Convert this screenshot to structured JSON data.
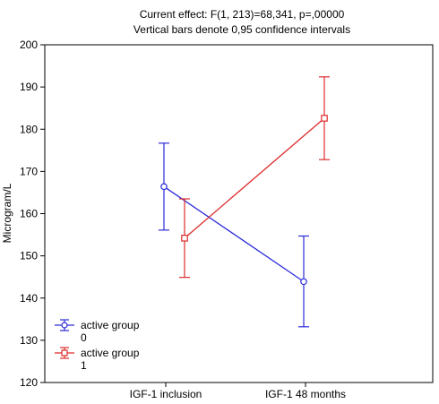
{
  "chart_data": {
    "type": "line",
    "title": "Current effect: F(1, 213)=68,341, p=,00000",
    "subtitle": "Vertical bars denote 0,95 confidence intervals",
    "ylabel": "Microgram/L",
    "xlabel": "",
    "categories": [
      "IGF-1 inclusion",
      "IGF-1 48 months"
    ],
    "ylim": [
      120,
      200
    ],
    "yticks": [
      120,
      130,
      140,
      150,
      160,
      170,
      180,
      190,
      200
    ],
    "grid": false,
    "legend_position": "bottom-left",
    "series": [
      {
        "name": "active group 0",
        "legend_line1": "active group",
        "legend_line2": "0",
        "color": "#2b2bd9",
        "marker": "circle",
        "values": [
          166.4,
          143.9
        ],
        "ci_low": [
          156.1,
          133.2
        ],
        "ci_high": [
          176.7,
          154.7
        ]
      },
      {
        "name": "active group 1",
        "legend_line1": "active group",
        "legend_line2": "1",
        "color": "#dd2b2b",
        "marker": "square",
        "values": [
          154.2,
          182.6
        ],
        "ci_low": [
          144.9,
          172.8
        ],
        "ci_high": [
          163.5,
          192.4
        ]
      }
    ]
  }
}
